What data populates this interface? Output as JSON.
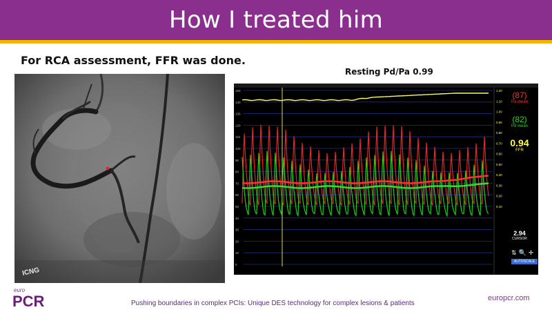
{
  "header": {
    "title": "How I treated him"
  },
  "content": {
    "heading": "For RCA assessment, FFR was done.",
    "trace_caption": "Resting Pd/Pa 0.99",
    "angio_label": "ICNG"
  },
  "monitor": {
    "pa_value": "(87)",
    "pa_label": "Pa mean",
    "pd_value": "(82)",
    "pd_label": "Pd mean",
    "ffr_value": "0.94",
    "ffr_label": "FFR",
    "cursor_value": "2.94",
    "cursor_label": "CURSOR",
    "autoscale_label": "AUTOSCALE",
    "left_ticks": [
      "150",
      "140",
      "130",
      "120",
      "110",
      "100",
      "90",
      "80",
      "70",
      "60",
      "50",
      "40",
      "30",
      "20",
      "10",
      "0"
    ],
    "right_ticks": [
      "1.20",
      "1.10",
      "1.00",
      "0.90",
      "0.80",
      "0.70",
      "0.60",
      "0.50",
      "0.40",
      "0.30",
      "0.20",
      "0.10"
    ]
  },
  "footer": {
    "logo_top": "euro",
    "logo_main": "PCR",
    "tagline": "Pushing boundaries in complex PCIs: Unique DES technology for complex lesions & patients",
    "url": "europcr.com"
  },
  "colors": {
    "brand_purple": "#8b2f8e",
    "gold": "#f2b600",
    "pa_red": "#ff3030",
    "pd_green": "#22dd22",
    "ffr_yellow": "#ffff44"
  }
}
